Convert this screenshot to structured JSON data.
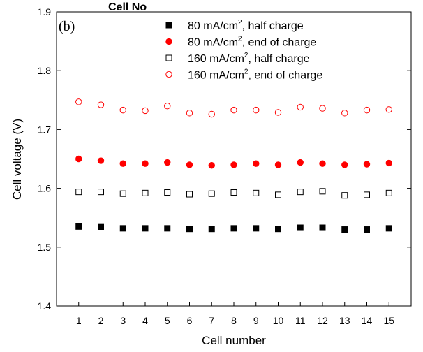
{
  "header_fragment": "Cell No",
  "panel_label": "(b)",
  "chart_data": {
    "type": "scatter",
    "xlabel": "Cell number",
    "ylabel": "Cell voltage (V)",
    "xlim": [
      0,
      16
    ],
    "ylim": [
      1.4,
      1.9
    ],
    "x": [
      1,
      2,
      3,
      4,
      5,
      6,
      7,
      8,
      9,
      10,
      11,
      12,
      13,
      14,
      15
    ],
    "x_ticks": [
      "1",
      "2",
      "3",
      "4",
      "5",
      "6",
      "7",
      "8",
      "9",
      "10",
      "11",
      "12",
      "13",
      "14",
      "15"
    ],
    "y_ticks": [
      "1.4",
      "1.5",
      "1.6",
      "1.7",
      "1.8",
      "1.9"
    ],
    "legend_position": "top-right",
    "series": [
      {
        "legend_prefix": "80 mA/cm",
        "legend_sup": "2",
        "legend_suffix": ", half charge",
        "marker": "square-filled",
        "color": "#000000",
        "values": [
          1.535,
          1.534,
          1.532,
          1.532,
          1.532,
          1.531,
          1.531,
          1.532,
          1.532,
          1.531,
          1.533,
          1.533,
          1.53,
          1.53,
          1.532
        ]
      },
      {
        "legend_prefix": "80 mA/cm",
        "legend_sup": "2",
        "legend_suffix": ", end of charge",
        "marker": "circle-filled",
        "color": "#ff0000",
        "values": [
          1.65,
          1.647,
          1.642,
          1.642,
          1.644,
          1.64,
          1.639,
          1.64,
          1.642,
          1.64,
          1.644,
          1.642,
          1.64,
          1.641,
          1.643
        ]
      },
      {
        "legend_prefix": "160 mA/cm",
        "legend_sup": "2",
        "legend_suffix": ", half charge",
        "marker": "square-open",
        "color": "#000000",
        "values": [
          1.594,
          1.594,
          1.591,
          1.592,
          1.593,
          1.59,
          1.591,
          1.593,
          1.592,
          1.589,
          1.594,
          1.595,
          1.588,
          1.589,
          1.592
        ]
      },
      {
        "legend_prefix": "160 mA/cm",
        "legend_sup": "2",
        "legend_suffix": ", end of charge",
        "marker": "circle-open",
        "color": "#ff0000",
        "values": [
          1.747,
          1.742,
          1.733,
          1.732,
          1.74,
          1.728,
          1.726,
          1.733,
          1.733,
          1.729,
          1.738,
          1.736,
          1.728,
          1.733,
          1.734
        ]
      }
    ]
  }
}
